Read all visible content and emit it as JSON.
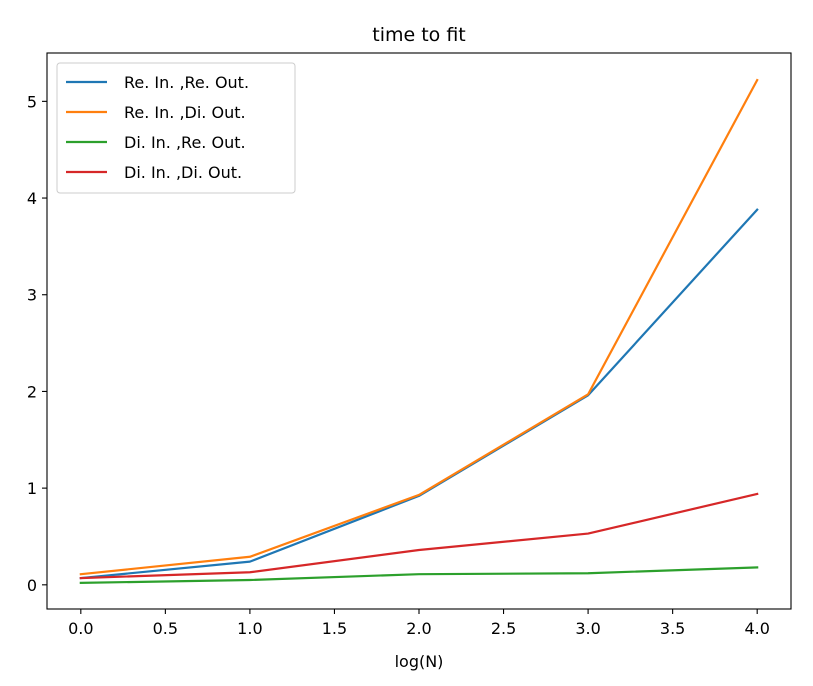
{
  "chart_data": {
    "type": "line",
    "title": "time to fit",
    "xlabel": "log(N)",
    "ylabel": "",
    "x": [
      0,
      1,
      2,
      3,
      4
    ],
    "xlim": [
      -0.2,
      4.2
    ],
    "ylim": [
      -0.25,
      5.5
    ],
    "xticks": [
      "0.0",
      "0.5",
      "1.0",
      "1.5",
      "2.0",
      "2.5",
      "3.0",
      "3.5",
      "4.0"
    ],
    "yticks": [
      "0",
      "1",
      "2",
      "3",
      "4",
      "5"
    ],
    "grid": false,
    "legend_position": "top-left",
    "series": [
      {
        "name": "Re. In. ,Re. Out.",
        "color": "#1f77b4",
        "values": [
          0.07,
          0.24,
          0.92,
          1.96,
          3.88
        ]
      },
      {
        "name": "Re. In. ,Di. Out.",
        "color": "#ff7f0e",
        "values": [
          0.11,
          0.29,
          0.93,
          1.97,
          5.22
        ]
      },
      {
        "name": "Di. In. ,Re. Out.",
        "color": "#2ca02c",
        "values": [
          0.02,
          0.05,
          0.11,
          0.12,
          0.18
        ]
      },
      {
        "name": "Di. In. ,Di. Out.",
        "color": "#d62728",
        "values": [
          0.07,
          0.13,
          0.36,
          0.53,
          0.94
        ]
      }
    ]
  }
}
